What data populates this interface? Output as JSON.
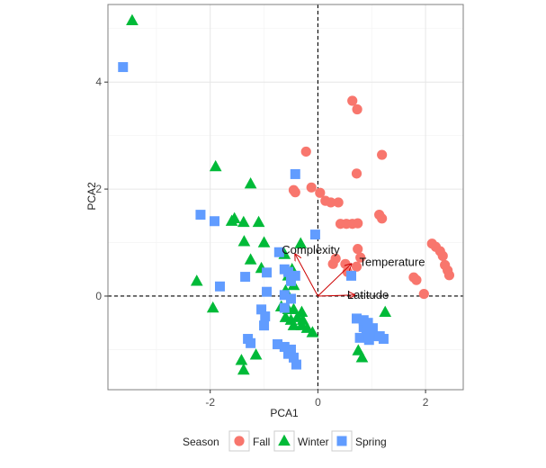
{
  "chart_data": {
    "type": "scatter",
    "xlabel": "PCA1",
    "ylabel": "PCA2",
    "xlim": [
      -3.9,
      2.7
    ],
    "ylim": [
      -1.75,
      5.45
    ],
    "x_ticks": [
      -2,
      0,
      2
    ],
    "y_ticks": [
      0,
      2,
      4
    ],
    "x_tick_labels": [
      "-2",
      "0",
      "2"
    ],
    "y_tick_labels": [
      "0",
      "2",
      "4"
    ],
    "grid": true,
    "reference_lines": {
      "x": 0,
      "y": 0,
      "style": "dashed"
    },
    "legend": {
      "title": "Season",
      "placement": "bottom",
      "entries": [
        {
          "label": "Fall",
          "shape": "circle",
          "color": "#F8766D"
        },
        {
          "label": "Winter",
          "shape": "triangle",
          "color": "#00BA38"
        },
        {
          "label": "Spring",
          "shape": "square",
          "color": "#619CFF"
        }
      ]
    },
    "loadings": {
      "color": "#cc0000",
      "vectors": [
        {
          "label": "Complexity",
          "x": -0.42,
          "y": 0.78
        },
        {
          "label": "Temperature",
          "x": 0.62,
          "y": 0.6
        },
        {
          "label": "Latitude",
          "x": 0.68,
          "y": 0.02
        }
      ]
    },
    "series": [
      {
        "name": "Fall",
        "shape": "circle",
        "color": "#F8766D",
        "points": [
          [
            0.64,
            3.65
          ],
          [
            0.73,
            3.49
          ],
          [
            1.19,
            2.64
          ],
          [
            0.72,
            2.29
          ],
          [
            -0.22,
            2.7
          ],
          [
            -0.12,
            2.03
          ],
          [
            -0.45,
            1.98
          ],
          [
            -0.42,
            1.94
          ],
          [
            0.04,
            1.93
          ],
          [
            0.14,
            1.78
          ],
          [
            0.24,
            1.75
          ],
          [
            0.38,
            1.75
          ],
          [
            0.42,
            1.35
          ],
          [
            0.53,
            1.35
          ],
          [
            0.64,
            1.35
          ],
          [
            0.74,
            1.36
          ],
          [
            1.14,
            1.52
          ],
          [
            1.19,
            1.45
          ],
          [
            2.12,
            0.98
          ],
          [
            2.19,
            0.92
          ],
          [
            2.27,
            0.84
          ],
          [
            2.32,
            0.75
          ],
          [
            2.36,
            0.58
          ],
          [
            2.41,
            0.48
          ],
          [
            2.44,
            0.39
          ],
          [
            1.78,
            0.35
          ],
          [
            1.83,
            0.3
          ],
          [
            1.97,
            0.04
          ],
          [
            0.74,
            0.88
          ],
          [
            0.79,
            0.72
          ],
          [
            0.33,
            0.7
          ],
          [
            0.28,
            0.6
          ],
          [
            0.51,
            0.6
          ],
          [
            0.72,
            0.55
          ],
          [
            0.55,
            0.45
          ]
        ]
      },
      {
        "name": "Winter",
        "shape": "triangle",
        "color": "#00BA38",
        "points": [
          [
            -3.45,
            5.15
          ],
          [
            -1.9,
            2.42
          ],
          [
            -1.25,
            2.1
          ],
          [
            -1.55,
            1.45
          ],
          [
            -1.38,
            1.38
          ],
          [
            -1.1,
            1.38
          ],
          [
            -1.37,
            1.02
          ],
          [
            -1.0,
            1.0
          ],
          [
            -0.32,
            0.98
          ],
          [
            -1.25,
            0.68
          ],
          [
            -1.05,
            0.52
          ],
          [
            -0.62,
            0.78
          ],
          [
            -0.48,
            0.5
          ],
          [
            -0.55,
            0.38
          ],
          [
            -0.45,
            0.2
          ],
          [
            -0.6,
            0.1
          ],
          [
            -2.25,
            0.28
          ],
          [
            -1.95,
            -0.22
          ],
          [
            -0.68,
            -0.2
          ],
          [
            -0.55,
            -0.25
          ],
          [
            -0.45,
            -0.25
          ],
          [
            -0.3,
            -0.3
          ],
          [
            -0.38,
            -0.4
          ],
          [
            -0.6,
            -0.4
          ],
          [
            -0.5,
            -0.45
          ],
          [
            -0.45,
            -0.55
          ],
          [
            -0.3,
            -0.55
          ],
          [
            -0.2,
            -0.6
          ],
          [
            -0.1,
            -0.68
          ],
          [
            -1.42,
            -1.2
          ],
          [
            -1.38,
            -1.38
          ],
          [
            -1.15,
            -1.1
          ],
          [
            0.75,
            -1.02
          ],
          [
            0.82,
            -1.15
          ],
          [
            1.25,
            -0.3
          ],
          [
            -1.6,
            1.4
          ],
          [
            -0.28,
            -0.45
          ]
        ]
      },
      {
        "name": "Spring",
        "shape": "square",
        "color": "#619CFF",
        "points": [
          [
            -3.62,
            4.28
          ],
          [
            -0.42,
            2.28
          ],
          [
            -2.18,
            1.52
          ],
          [
            -1.92,
            1.4
          ],
          [
            -0.05,
            1.15
          ],
          [
            -0.72,
            0.82
          ],
          [
            -1.82,
            0.18
          ],
          [
            -1.35,
            0.36
          ],
          [
            -0.95,
            0.44
          ],
          [
            -0.62,
            0.5
          ],
          [
            -0.55,
            0.45
          ],
          [
            -0.42,
            0.38
          ],
          [
            -0.5,
            0.28
          ],
          [
            -0.95,
            0.08
          ],
          [
            -0.62,
            0.02
          ],
          [
            -1.05,
            -0.25
          ],
          [
            -0.98,
            -0.38
          ],
          [
            -1.0,
            -0.55
          ],
          [
            -0.5,
            -0.05
          ],
          [
            -0.62,
            -0.22
          ],
          [
            -1.3,
            -0.8
          ],
          [
            -1.25,
            -0.88
          ],
          [
            -0.75,
            -0.9
          ],
          [
            -0.62,
            -0.95
          ],
          [
            -0.5,
            -1.0
          ],
          [
            -0.55,
            -1.08
          ],
          [
            -0.45,
            -1.15
          ],
          [
            -0.4,
            -1.28
          ],
          [
            0.62,
            0.38
          ],
          [
            0.72,
            -0.42
          ],
          [
            0.85,
            -0.58
          ],
          [
            0.9,
            -0.68
          ],
          [
            1.05,
            -0.75
          ],
          [
            1.22,
            -0.8
          ],
          [
            1.02,
            -0.6
          ],
          [
            0.78,
            -0.78
          ],
          [
            0.95,
            -0.82
          ],
          [
            1.15,
            -0.75
          ],
          [
            0.85,
            -0.45
          ],
          [
            0.93,
            -0.5
          ]
        ]
      }
    ]
  }
}
